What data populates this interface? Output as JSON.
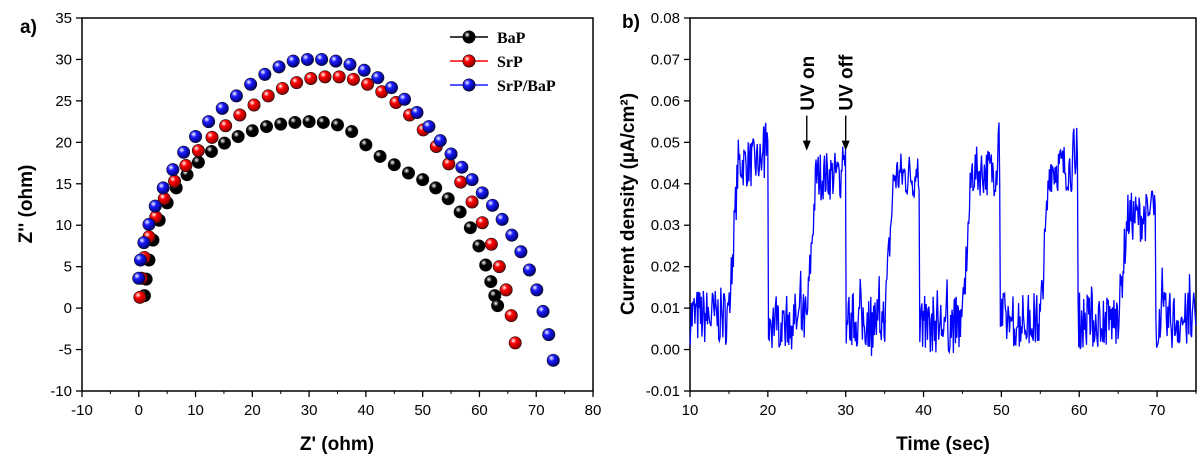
{
  "chart_data": [
    {
      "panel_label": "a)",
      "type": "scatter",
      "xlabel": "Z' (ohm)",
      "ylabel": "Z'' (ohm)",
      "xlim": [
        -10,
        80
      ],
      "ylim": [
        -10,
        35
      ],
      "xticks": [
        -10,
        0,
        10,
        20,
        30,
        40,
        50,
        60,
        70,
        80
      ],
      "yticks": [
        -10,
        -5,
        0,
        5,
        10,
        15,
        20,
        25,
        30,
        35
      ],
      "legend_position": "top-right",
      "series": [
        {
          "name": "BaP",
          "color": "#000000",
          "x": [
            1.0,
            1.3,
            1.8,
            2.5,
            3.6,
            5.0,
            6.6,
            8.5,
            10.5,
            12.8,
            15.1,
            17.5,
            20.0,
            22.5,
            25.0,
            27.5,
            30.0,
            32.5,
            35.0,
            37.5,
            40.0,
            42.5,
            45.0,
            47.5,
            50.0,
            52.3,
            54.5,
            56.6,
            58.4,
            59.9,
            61.1,
            62.0,
            62.7,
            63.2
          ],
          "y": [
            1.5,
            3.5,
            5.8,
            8.2,
            10.6,
            12.7,
            14.5,
            16.1,
            17.6,
            18.9,
            19.9,
            20.7,
            21.4,
            21.9,
            22.2,
            22.4,
            22.5,
            22.4,
            22.1,
            21.3,
            19.7,
            18.3,
            17.3,
            16.3,
            15.5,
            14.5,
            13.2,
            11.6,
            9.7,
            7.5,
            5.2,
            3.2,
            1.5,
            0.3
          ]
        },
        {
          "name": "SrP",
          "color": "#ff0000",
          "x": [
            0.2,
            0.5,
            1.0,
            1.8,
            3.0,
            4.5,
            6.3,
            8.3,
            10.5,
            12.9,
            15.3,
            17.8,
            20.3,
            22.8,
            25.3,
            27.8,
            30.3,
            32.8,
            35.3,
            37.8,
            40.3,
            42.8,
            45.3,
            47.7,
            50.1,
            52.4,
            54.6,
            56.7,
            58.7,
            60.5,
            62.1,
            63.5,
            64.7,
            65.6,
            66.3
          ],
          "y": [
            1.3,
            3.6,
            6.1,
            8.6,
            11.0,
            13.2,
            15.3,
            17.2,
            19.0,
            20.6,
            22.0,
            23.3,
            24.5,
            25.6,
            26.5,
            27.2,
            27.7,
            27.9,
            27.9,
            27.6,
            27.0,
            26.1,
            24.8,
            23.3,
            21.5,
            19.5,
            17.4,
            15.2,
            12.8,
            10.3,
            7.7,
            5.0,
            2.2,
            -0.9,
            -4.2
          ]
        },
        {
          "name": "SrP/BaP",
          "color": "#1a1aff",
          "x": [
            0.0,
            0.3,
            0.9,
            1.8,
            2.9,
            4.3,
            6.0,
            7.9,
            10.0,
            12.3,
            14.7,
            17.2,
            19.7,
            22.2,
            24.7,
            27.2,
            29.7,
            32.2,
            34.7,
            37.2,
            39.7,
            42.1,
            44.5,
            46.8,
            49.0,
            51.1,
            53.1,
            55.0,
            56.9,
            58.7,
            60.5,
            62.3,
            64.0,
            65.7,
            67.3,
            68.8,
            70.1,
            71.2,
            72.2,
            73.0
          ],
          "y": [
            3.6,
            5.8,
            7.9,
            10.1,
            12.3,
            14.5,
            16.7,
            18.8,
            20.7,
            22.5,
            24.1,
            25.6,
            27.0,
            28.2,
            29.1,
            29.8,
            30.0,
            30.0,
            29.8,
            29.4,
            28.7,
            27.8,
            26.6,
            25.2,
            23.6,
            21.9,
            20.2,
            18.6,
            17.0,
            15.5,
            13.9,
            12.4,
            10.7,
            8.8,
            6.8,
            4.6,
            2.2,
            -0.4,
            -3.2,
            -6.3
          ]
        }
      ]
    },
    {
      "panel_label": "b)",
      "type": "line",
      "xlabel": "Time (sec)",
      "ylabel": "Current density (µA/cm²)",
      "xlim": [
        10,
        75
      ],
      "ylim": [
        -0.01,
        0.08
      ],
      "xticks": [
        10,
        20,
        30,
        40,
        50,
        60,
        70
      ],
      "yticks": [
        "-0.01",
        "0.00",
        "0.01",
        "0.02",
        "0.03",
        "0.04",
        "0.05",
        "0.06",
        "0.07",
        "0.08"
      ],
      "line_color": "#0000ff",
      "annotations": [
        {
          "text": "UV on",
          "x": 25.0,
          "y": 0.048
        },
        {
          "text": "UV off",
          "x": 30.0,
          "y": 0.048
        }
      ],
      "on_intervals": [
        [
          15.0,
          20.0
        ],
        [
          25.0,
          30.0
        ],
        [
          35.0,
          39.5
        ],
        [
          45.0,
          49.8
        ],
        [
          55.0,
          59.8
        ],
        [
          65.0,
          69.8
        ]
      ],
      "on_levels": [
        0.045,
        0.042,
        0.042,
        0.043,
        0.044,
        0.032
      ],
      "off_levels": [
        0.008,
        0.007,
        0.007,
        0.006,
        0.007,
        0.007,
        0.007
      ],
      "peak_values": [
        0.0555,
        0.0515,
        0.0555,
        0.0555,
        0.0555,
        0.041
      ],
      "x_range": [
        10.0,
        75.0
      ]
    }
  ]
}
